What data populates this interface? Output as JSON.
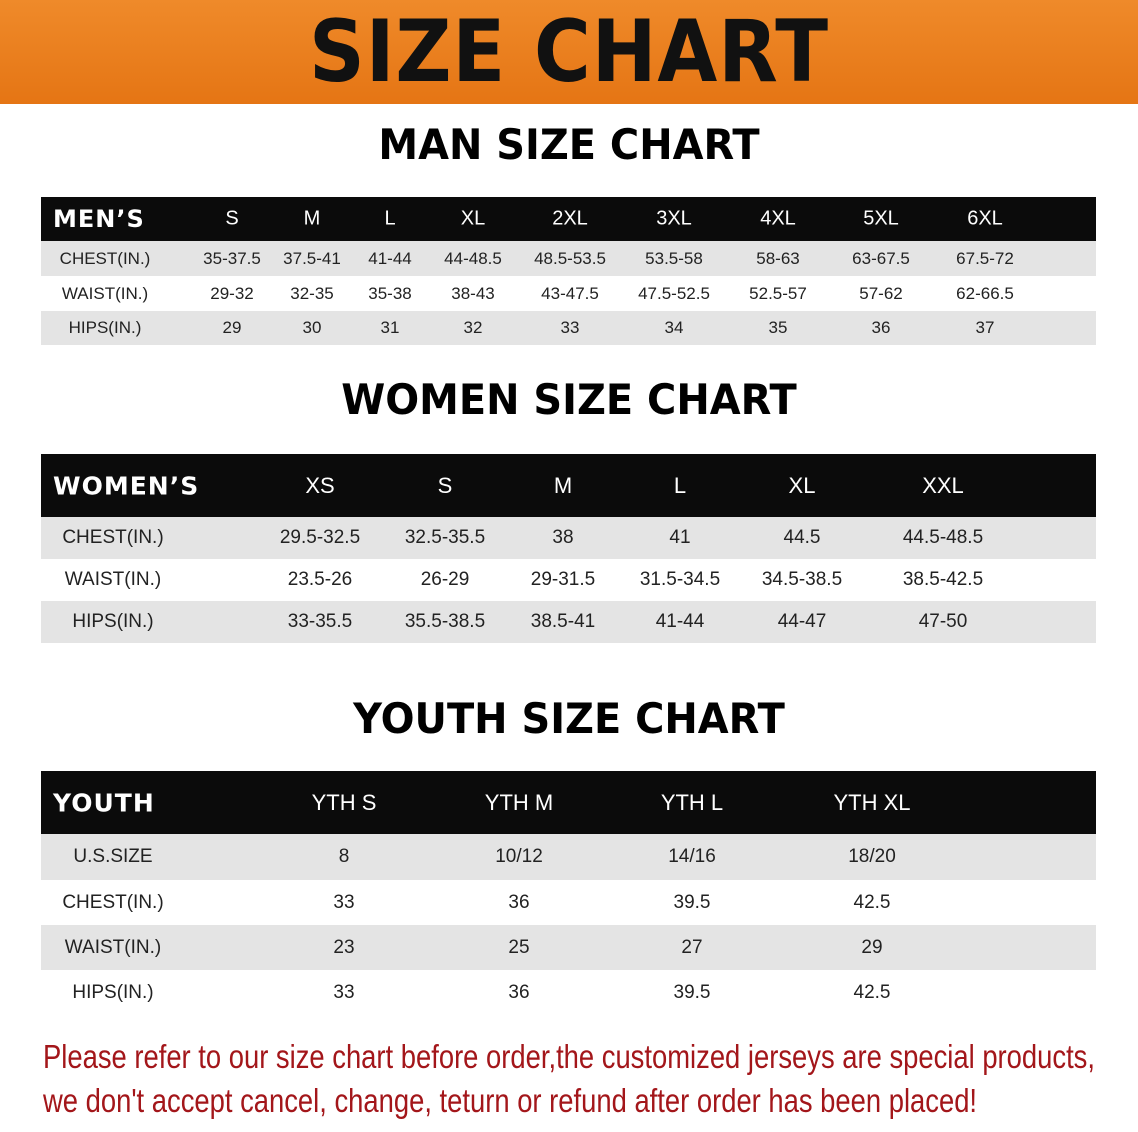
{
  "banner": {
    "title": "SIZE CHART",
    "color": "#e97c1c"
  },
  "men": {
    "heading": "MAN SIZE CHART",
    "header": [
      "MEN’S",
      "S",
      "M",
      "L",
      "XL",
      "2XL",
      "3XL",
      "4XL",
      "5XL",
      "6XL"
    ],
    "rows": [
      [
        "CHEST(IN.)",
        "35-37.5",
        "37.5-41",
        "41-44",
        "44-48.5",
        "48.5-53.5",
        "53.5-58",
        "58-63",
        "63-67.5",
        "67.5-72"
      ],
      [
        "WAIST(IN.)",
        "29-32",
        "32-35",
        "35-38",
        "38-43",
        "43-47.5",
        "47.5-52.5",
        "52.5-57",
        "57-62",
        "62-66.5"
      ],
      [
        "HIPS(IN.)",
        "29",
        "30",
        "31",
        "32",
        "33",
        "34",
        "35",
        "36",
        "37"
      ]
    ]
  },
  "women": {
    "heading": "WOMEN SIZE CHART",
    "header": [
      "WOMEN’S",
      "XS",
      "S",
      "M",
      "L",
      "XL",
      "XXL"
    ],
    "rows": [
      [
        "CHEST(IN.)",
        "29.5-32.5",
        "32.5-35.5",
        "38",
        "41",
        "44.5",
        "44.5-48.5"
      ],
      [
        "WAIST(IN.)",
        "23.5-26",
        "26-29",
        "29-31.5",
        "31.5-34.5",
        "34.5-38.5",
        "38.5-42.5"
      ],
      [
        "HIPS(IN.)",
        "33-35.5",
        "35.5-38.5",
        "38.5-41",
        "41-44",
        "44-47",
        "47-50"
      ]
    ]
  },
  "youth": {
    "heading": "YOUTH SIZE CHART",
    "header": [
      "YOUTH",
      "YTH S",
      "YTH M",
      "YTH L",
      "YTH XL"
    ],
    "rows": [
      [
        "U.S.SIZE",
        "8",
        "10/12",
        "14/16",
        "18/20"
      ],
      [
        "CHEST(IN.)",
        "33",
        "36",
        "39.5",
        "42.5"
      ],
      [
        "WAIST(IN.)",
        "23",
        "25",
        "27",
        "29"
      ],
      [
        "HIPS(IN.)",
        "33",
        "36",
        "39.5",
        "42.5"
      ]
    ]
  },
  "notice": {
    "line1": "Please refer to our size chart before order,the customized jerseys are special products,",
    "line2": "we don't accept cancel, change, teturn or refund after order has been placed!",
    "color": "#a3161a"
  }
}
